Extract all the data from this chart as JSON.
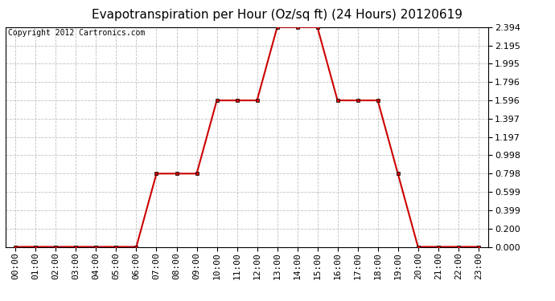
{
  "title": "Evapotranspiration per Hour (Oz/sq ft) (24 Hours) 20120619",
  "copyright_text": "Copyright 2012 Cartronics.com",
  "hours": [
    "00:00",
    "01:00",
    "02:00",
    "03:00",
    "04:00",
    "05:00",
    "06:00",
    "07:00",
    "08:00",
    "09:00",
    "10:00",
    "11:00",
    "12:00",
    "13:00",
    "14:00",
    "15:00",
    "16:00",
    "17:00",
    "18:00",
    "19:00",
    "20:00",
    "21:00",
    "22:00",
    "23:00"
  ],
  "values": [
    0.0,
    0.0,
    0.0,
    0.0,
    0.0,
    0.0,
    0.0,
    0.798,
    0.798,
    0.798,
    1.596,
    1.596,
    1.596,
    2.394,
    2.394,
    2.394,
    1.596,
    1.596,
    1.596,
    0.798,
    0.0,
    0.0,
    0.0,
    0.0
  ],
  "yticks": [
    0.0,
    0.2,
    0.399,
    0.599,
    0.798,
    0.998,
    1.197,
    1.397,
    1.596,
    1.796,
    1.995,
    2.195,
    2.394
  ],
  "ymin": 0.0,
  "ymax": 2.394,
  "line_color": "#cc0000",
  "marker_color": "#000000",
  "bg_color": "#ffffff",
  "plot_bg_color": "#ffffff",
  "grid_color": "#c0c0c0",
  "title_fontsize": 11,
  "copyright_fontsize": 7,
  "tick_fontsize": 8
}
